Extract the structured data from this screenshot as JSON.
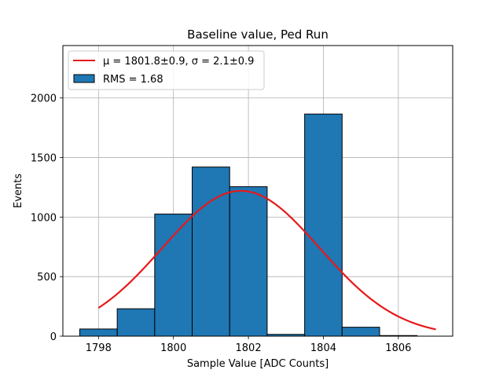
{
  "chart_data": {
    "type": "bar",
    "title": "Baseline value, Ped Run",
    "xlabel": "Sample Value [ADC Counts]",
    "ylabel": "Events",
    "xlim": [
      1797.05,
      1807.45
    ],
    "ylim": [
      0,
      2440
    ],
    "xticks": [
      1798,
      1800,
      1802,
      1804,
      1806
    ],
    "yticks": [
      0,
      500,
      1000,
      1500,
      2000
    ],
    "grid": true,
    "legend_position": "top-left",
    "bin_edges": [
      1797.5,
      1798.5,
      1799.5,
      1800.5,
      1801.5,
      1802.5,
      1803.5,
      1804.5,
      1805.5,
      1806.5
    ],
    "counts": [
      60,
      230,
      1025,
      1420,
      1255,
      15,
      1865,
      75,
      5
    ],
    "fit": {
      "mu": 1801.8,
      "sigma": 2.1,
      "amplitude": 1220,
      "x_range": [
        1798,
        1807
      ]
    },
    "legend": {
      "fit_label": "μ = 1801.8±0.9, σ = 2.1±0.9",
      "hist_label": "RMS = 1.68"
    },
    "colors": {
      "bar": "#1f77b4",
      "fit": "#e6191a",
      "grid": "#b0b0b0"
    }
  }
}
